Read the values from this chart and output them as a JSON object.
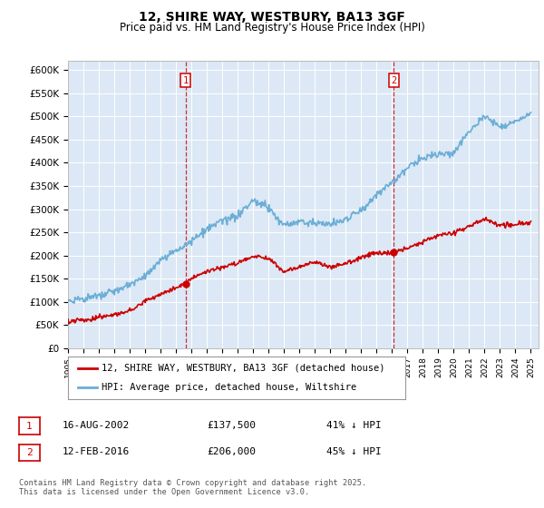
{
  "title": "12, SHIRE WAY, WESTBURY, BA13 3GF",
  "subtitle": "Price paid vs. HM Land Registry's House Price Index (HPI)",
  "ylim": [
    0,
    620000
  ],
  "yticks": [
    0,
    50000,
    100000,
    150000,
    200000,
    250000,
    300000,
    350000,
    400000,
    450000,
    500000,
    550000,
    600000
  ],
  "ytick_labels": [
    "£0",
    "£50K",
    "£100K",
    "£150K",
    "£200K",
    "£250K",
    "£300K",
    "£350K",
    "£400K",
    "£450K",
    "£500K",
    "£550K",
    "£600K"
  ],
  "hpi_color": "#6baed6",
  "price_color": "#cc0000",
  "marker1_year": 2002.62,
  "marker2_year": 2016.12,
  "marker1_price": 137500,
  "marker2_price": 206000,
  "marker1_label": "1",
  "marker2_label": "2",
  "marker1_date": "16-AUG-2002",
  "marker2_date": "12-FEB-2016",
  "marker1_price_str": "£137,500",
  "marker2_price_str": "£206,000",
  "marker1_hpi_pct": "41% ↓ HPI",
  "marker2_hpi_pct": "45% ↓ HPI",
  "legend_price_label": "12, SHIRE WAY, WESTBURY, BA13 3GF (detached house)",
  "legend_hpi_label": "HPI: Average price, detached house, Wiltshire",
  "footer": "Contains HM Land Registry data © Crown copyright and database right 2025.\nThis data is licensed under the Open Government Licence v3.0.",
  "plot_background": "#dce8f5",
  "hpi_key_years": [
    1995,
    1996,
    1997,
    1998,
    1999,
    2000,
    2001,
    2002,
    2003,
    2004,
    2005,
    2006,
    2007,
    2008,
    2009,
    2010,
    2011,
    2012,
    2013,
    2014,
    2015,
    2016,
    2017,
    2018,
    2019,
    2020,
    2021,
    2022,
    2023,
    2024,
    2025
  ],
  "hpi_key_vals": [
    100000,
    103000,
    110000,
    120000,
    133000,
    155000,
    185000,
    210000,
    230000,
    255000,
    275000,
    285000,
    320000,
    305000,
    265000,
    275000,
    272000,
    268000,
    278000,
    300000,
    330000,
    360000,
    390000,
    410000,
    420000,
    420000,
    470000,
    500000,
    480000,
    490000,
    505000
  ],
  "price_key_years": [
    1995,
    1996,
    1997,
    1998,
    1999,
    2000,
    2001,
    2002,
    2002.62,
    2003,
    2004,
    2005,
    2006,
    2007,
    2008,
    2009,
    2010,
    2011,
    2012,
    2013,
    2014,
    2015,
    2016,
    2016.12,
    2017,
    2018,
    2019,
    2020,
    2021,
    2022,
    2023,
    2024,
    2025
  ],
  "price_key_vals": [
    55000,
    58000,
    65000,
    72000,
    80000,
    100000,
    115000,
    130000,
    137500,
    150000,
    165000,
    175000,
    183000,
    198000,
    195000,
    165000,
    175000,
    185000,
    175000,
    182000,
    195000,
    205000,
    205000,
    206000,
    215000,
    230000,
    245000,
    250000,
    265000,
    280000,
    268000,
    268000,
    272000
  ],
  "hpi_noise_std": 4000,
  "price_noise_std": 2500,
  "random_seed": 12
}
